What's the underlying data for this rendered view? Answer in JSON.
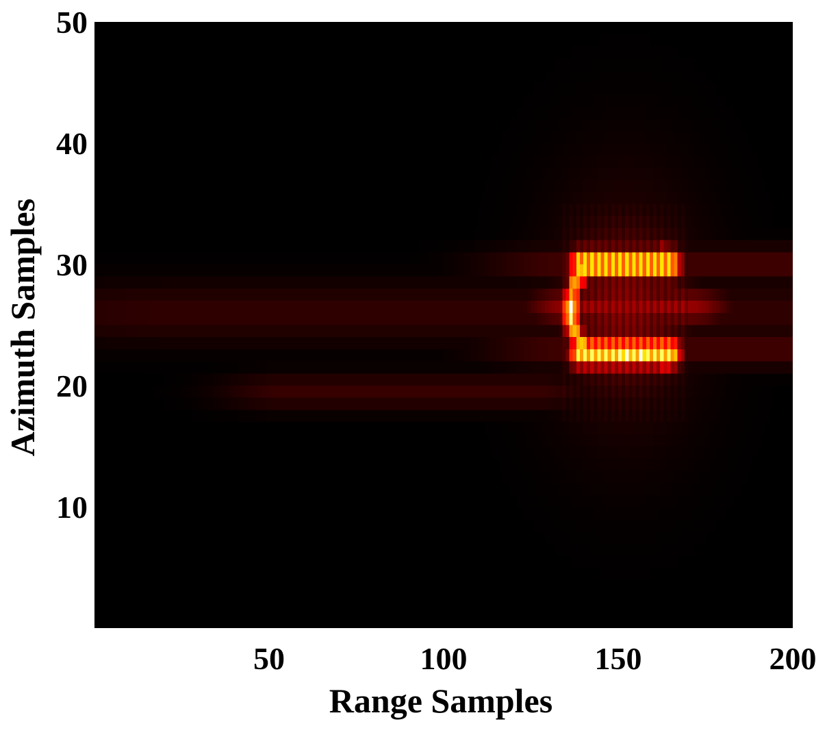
{
  "chart_data": {
    "type": "heatmap",
    "title": "",
    "xlabel": "Range Samples",
    "ylabel": "Azimuth Samples",
    "xlim": [
      0,
      200
    ],
    "ylim": [
      0,
      50
    ],
    "x_ticks": [
      50,
      100,
      150,
      200
    ],
    "y_ticks": [
      10,
      20,
      30,
      40,
      50
    ],
    "grid": false,
    "colormap": "hot",
    "background_color": "#000000",
    "value_range": [
      0,
      1
    ],
    "features": [
      {
        "shape": "streak",
        "x0": 20,
        "x1": 200,
        "y": 26,
        "dx": 50,
        "dy": 2.5,
        "value": 0.07
      },
      {
        "shape": "streak",
        "x0": 55,
        "x1": 125,
        "y": 19.5,
        "dx": 20,
        "dy": 1.5,
        "value": 0.08
      },
      {
        "shape": "streak",
        "x0": 135,
        "x1": 200,
        "y": 30,
        "dx": 25,
        "dy": 1.5,
        "value": 0.1
      },
      {
        "shape": "streak",
        "x0": 135,
        "x1": 200,
        "y": 23,
        "dx": 25,
        "dy": 1.5,
        "value": 0.1
      },
      {
        "shape": "streak",
        "x0": 136,
        "x1": 170,
        "y": 26.5,
        "dx": 12,
        "dy": 1.4,
        "value": 0.22
      },
      {
        "shape": "glow",
        "x": 152,
        "y": 26.5,
        "rx": 24,
        "ry": 12,
        "value": 0.07
      },
      {
        "shape": "glow",
        "x": 152,
        "y": 26.5,
        "rx": 18,
        "ry": 7,
        "value": 0.18
      },
      {
        "shape": "band",
        "x0": 139,
        "x1": 165,
        "y": 30,
        "dx": 3,
        "dy": 1.1,
        "value": 0.85
      },
      {
        "shape": "band",
        "x0": 139,
        "x1": 165,
        "y": 22.7,
        "dx": 3,
        "dy": 1.1,
        "value": 0.85
      },
      {
        "shape": "blob",
        "x": 136.5,
        "y": 26.2,
        "rx": 2.2,
        "ry": 1.8,
        "value": 1.0
      },
      {
        "shape": "blob",
        "x": 137.5,
        "y": 28.2,
        "rx": 1.5,
        "ry": 1.2,
        "value": 0.88
      },
      {
        "shape": "blob",
        "x": 137.5,
        "y": 24.4,
        "rx": 1.5,
        "ry": 1.2,
        "value": 0.88
      },
      {
        "shape": "blob",
        "x": 139.5,
        "y": 29.3,
        "rx": 1.6,
        "ry": 1.0,
        "value": 0.92
      },
      {
        "shape": "blob",
        "x": 139.5,
        "y": 23.4,
        "rx": 1.6,
        "ry": 1.0,
        "value": 0.92
      },
      {
        "shape": "blob",
        "x": 150,
        "y": 30,
        "rx": 3.5,
        "ry": 0.9,
        "value": 0.93
      },
      {
        "shape": "blob",
        "x": 152,
        "y": 22.6,
        "rx": 5,
        "ry": 0.8,
        "value": 0.97
      },
      {
        "shape": "blob",
        "x": 157,
        "y": 22.4,
        "rx": 3.5,
        "ry": 0.7,
        "value": 1.0
      },
      {
        "shape": "blob",
        "x": 163,
        "y": 30.4,
        "rx": 2.2,
        "ry": 1.0,
        "value": 0.72
      },
      {
        "shape": "blob",
        "x": 163.5,
        "y": 22.3,
        "rx": 2.2,
        "ry": 1.0,
        "value": 0.72
      }
    ]
  }
}
